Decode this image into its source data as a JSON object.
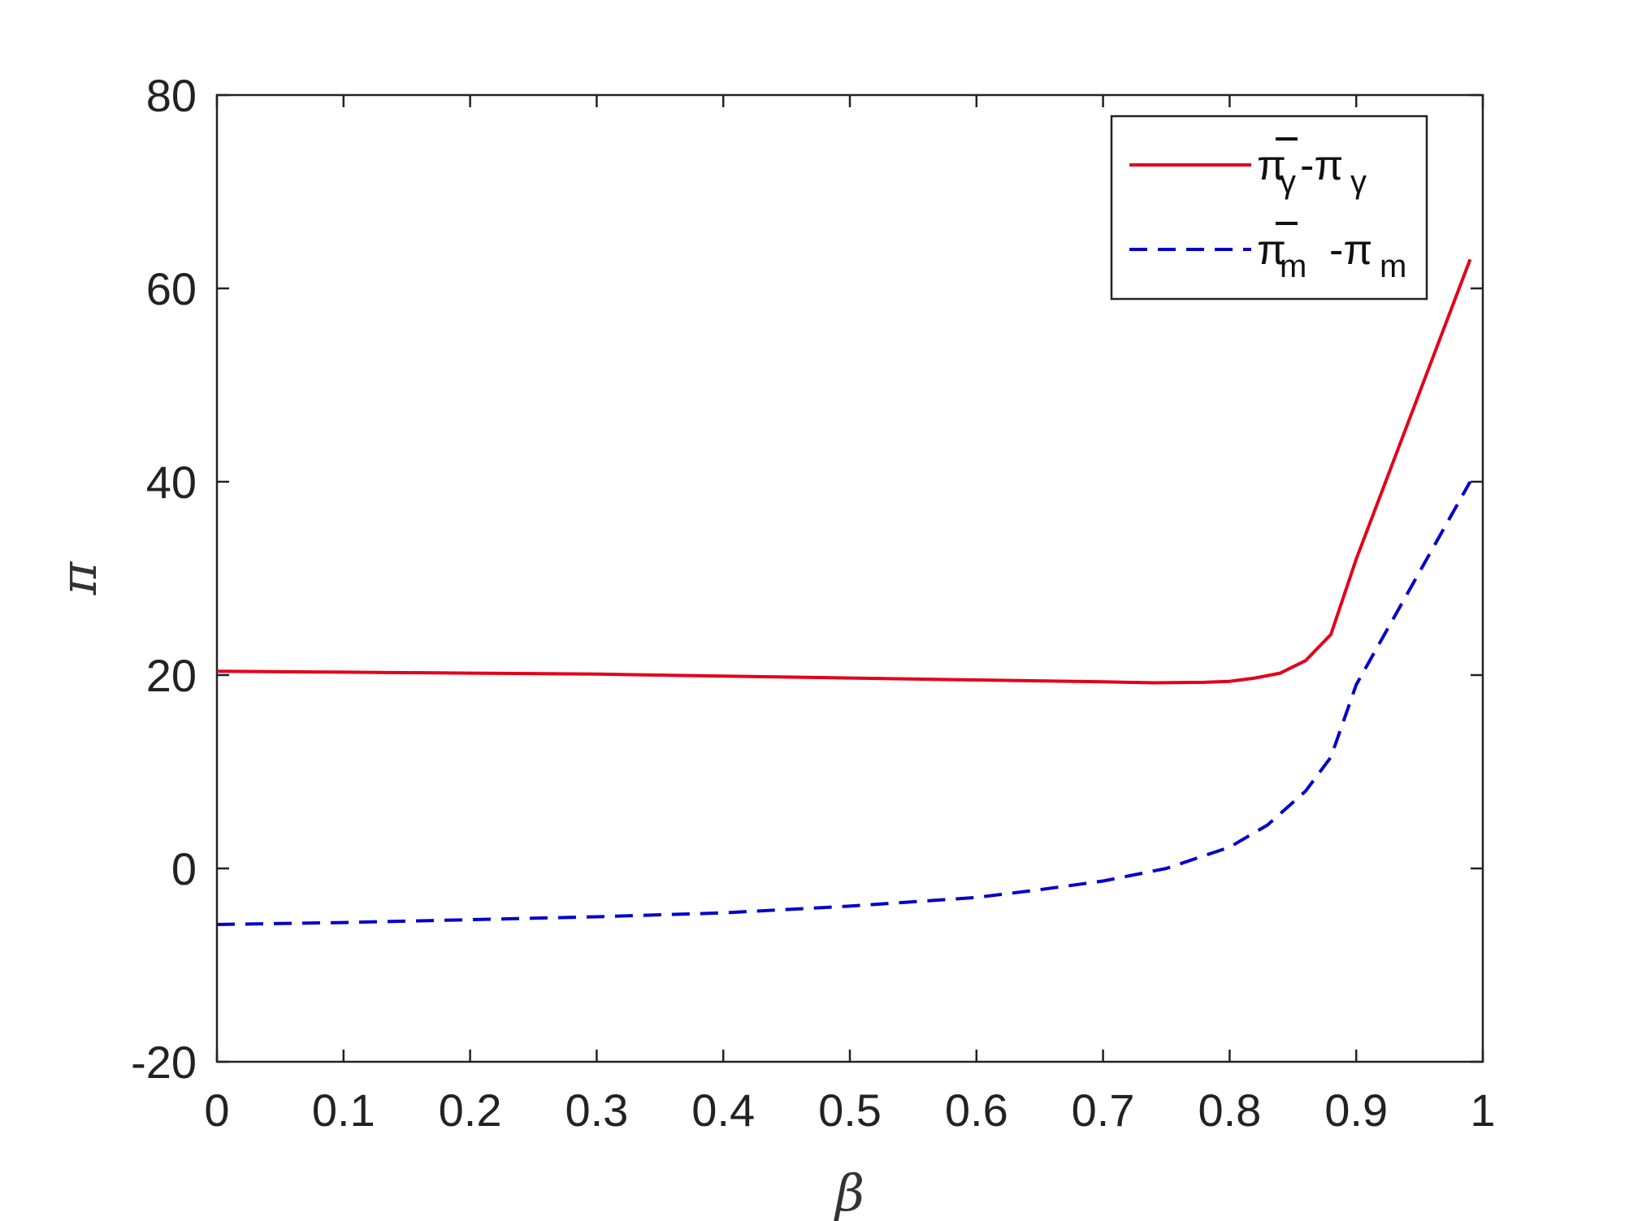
{
  "chart_data": {
    "type": "line",
    "xlabel": "β",
    "ylabel": "π",
    "xlim": [
      0,
      1
    ],
    "ylim": [
      -20,
      80
    ],
    "xticks": [
      "0",
      "0.1",
      "0.2",
      "0.3",
      "0.4",
      "0.5",
      "0.6",
      "0.7",
      "0.8",
      "0.9",
      "1"
    ],
    "yticks": [
      "-20",
      "0",
      "20",
      "40",
      "60",
      "80"
    ],
    "grid": false,
    "legend_position": "top-right",
    "series": [
      {
        "name": "π̄γ-πγ",
        "label_main": "π",
        "label_sub": "γ",
        "label_mid": "-π",
        "label_sub2": "γ",
        "color": "#e3001b",
        "style": "solid",
        "x": [
          0,
          0.1,
          0.2,
          0.3,
          0.4,
          0.5,
          0.6,
          0.7,
          0.74,
          0.78,
          0.8,
          0.82,
          0.84,
          0.86,
          0.88,
          0.9,
          0.99
        ],
        "y": [
          20.4,
          20.3,
          20.2,
          20.1,
          19.9,
          19.7,
          19.5,
          19.3,
          19.2,
          19.25,
          19.35,
          19.7,
          20.2,
          21.5,
          24.2,
          32,
          63
        ]
      },
      {
        "name": "π̄m-πm",
        "label_main": "π",
        "label_sub": "m",
        "label_mid": "-π",
        "label_sub2": "m",
        "color": "#0000cc",
        "style": "dashed",
        "x": [
          0,
          0.1,
          0.2,
          0.3,
          0.4,
          0.5,
          0.6,
          0.65,
          0.7,
          0.75,
          0.8,
          0.83,
          0.86,
          0.88,
          0.9,
          0.99
        ],
        "y": [
          -5.8,
          -5.6,
          -5.3,
          -5.0,
          -4.6,
          -3.9,
          -3.0,
          -2.2,
          -1.3,
          0.0,
          2.2,
          4.5,
          8.0,
          11.5,
          19.0,
          40.0
        ]
      }
    ]
  }
}
